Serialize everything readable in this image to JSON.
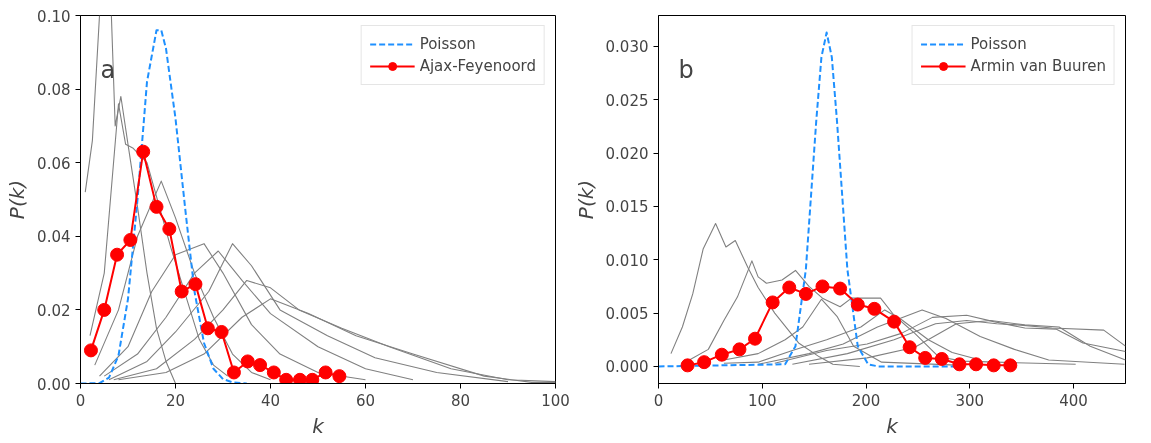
{
  "chart_data": [
    {
      "type": "line",
      "xlabel": "k",
      "ylabel": "P(k)",
      "annotations": [
        "a"
      ],
      "xlim": [
        0,
        100
      ],
      "ylim": [
        0,
        0.1
      ],
      "xticks": [
        0,
        20,
        40,
        60,
        80,
        100
      ],
      "yticks": [
        {
          "value": 0,
          "label": "0.00"
        },
        {
          "value": 0.02,
          "label": "0.02"
        },
        {
          "value": 0.04,
          "label": "0.04"
        },
        {
          "value": 0.06,
          "label": "0.06"
        },
        {
          "value": 0.08,
          "label": "0.08"
        },
        {
          "value": 0.1,
          "label": "0.10"
        }
      ],
      "grid": false,
      "legend": "top right",
      "series": [
        {
          "color": "#808080",
          "x": [
            1,
            2.5,
            4
          ],
          "values": [
            0.052,
            0.066,
            0.1
          ]
        },
        {
          "color": "#808080",
          "x": [
            6.5,
            7.3,
            8.5,
            10,
            12,
            14,
            16,
            18,
            20
          ],
          "values": [
            0.1,
            0.07,
            0.078,
            0.065,
            0.048,
            0.03,
            0.015,
            0.006,
            0.0
          ]
        },
        {
          "color": "#808080",
          "x": [
            2,
            5,
            8,
            9.5,
            11,
            14,
            19,
            25,
            28,
            31
          ],
          "values": [
            0.013,
            0.03,
            0.076,
            0.065,
            0.064,
            0.06,
            0.037,
            0.012,
            0.005,
            0.002
          ]
        },
        {
          "color": "#808080",
          "x": [
            3,
            8,
            12,
            17,
            20,
            24,
            28,
            32,
            36,
            40
          ],
          "values": [
            0.005,
            0.02,
            0.04,
            0.055,
            0.045,
            0.03,
            0.018,
            0.008,
            0.003,
            0.001
          ]
        },
        {
          "color": "#808080",
          "x": [
            4,
            10,
            15,
            20,
            26,
            30,
            36,
            42,
            50,
            60
          ],
          "values": [
            0.002,
            0.01,
            0.025,
            0.035,
            0.038,
            0.03,
            0.016,
            0.008,
            0.003,
            0.001
          ]
        },
        {
          "color": "#808080",
          "x": [
            5,
            12,
            18,
            24,
            29,
            34,
            40,
            50,
            60,
            70
          ],
          "values": [
            0.002,
            0.008,
            0.018,
            0.03,
            0.036,
            0.028,
            0.019,
            0.01,
            0.004,
            0.001
          ]
        },
        {
          "color": "#808080",
          "x": [
            6,
            14,
            20,
            27,
            32,
            36,
            42,
            52,
            62,
            75,
            90
          ],
          "values": [
            0.001,
            0.006,
            0.014,
            0.025,
            0.038,
            0.032,
            0.02,
            0.013,
            0.007,
            0.003,
            0.0005
          ]
        },
        {
          "color": "#808080",
          "x": [
            7,
            16,
            24,
            30,
            35,
            40,
            46,
            55,
            65,
            78,
            90,
            100
          ],
          "values": [
            0.001,
            0.004,
            0.012,
            0.02,
            0.028,
            0.026,
            0.02,
            0.015,
            0.01,
            0.004,
            0.001,
            0.0005
          ]
        },
        {
          "color": "#808080",
          "x": [
            8,
            18,
            26,
            34,
            40,
            48,
            58,
            70,
            85,
            95,
            100
          ],
          "values": [
            0.001,
            0.003,
            0.008,
            0.018,
            0.023,
            0.019,
            0.013,
            0.008,
            0.002,
            0.0003,
            0.0003
          ]
        },
        {
          "name": "Poisson",
          "color": "#1e90ff",
          "line_style": "dashed",
          "marker": "none",
          "x": [
            0,
            4,
            6,
            8,
            10,
            12,
            14,
            16,
            17,
            18,
            20,
            22,
            24,
            26,
            28,
            30,
            32,
            35
          ],
          "values": [
            0,
            0.0001,
            0.0016,
            0.0076,
            0.023,
            0.05,
            0.082,
            0.096,
            0.096,
            0.091,
            0.072,
            0.048,
            0.025,
            0.011,
            0.004,
            0.0012,
            0.0003,
            0
          ]
        },
        {
          "name": "Ajax-Feyenoord",
          "color": "#ff0000",
          "line_style": "solid",
          "marker": "circle",
          "x": [
            2.2,
            5,
            7.7,
            10.5,
            13.2,
            16,
            18.7,
            21.3,
            24.2,
            26.8,
            29.7,
            32.3,
            35.2,
            37.8,
            40.7,
            43.3,
            46.2,
            48.8,
            51.6,
            54.5
          ],
          "values": [
            0.009,
            0.02,
            0.035,
            0.039,
            0.063,
            0.048,
            0.042,
            0.025,
            0.027,
            0.015,
            0.014,
            0.003,
            0.006,
            0.005,
            0.003,
            0.001,
            0.001,
            0.001,
            0.003,
            0.002
          ]
        }
      ]
    },
    {
      "type": "line",
      "xlabel": "k",
      "ylabel": "P(k)",
      "annotations": [
        "b"
      ],
      "xlim": [
        0,
        450
      ],
      "ylim": [
        -0.0016,
        0.0329
      ],
      "xticks": [
        0,
        100,
        200,
        300,
        400
      ],
      "yticks": [
        {
          "value": 0,
          "label": "0.000"
        },
        {
          "value": 0.005,
          "label": "0.005"
        },
        {
          "value": 0.01,
          "label": "0.010"
        },
        {
          "value": 0.015,
          "label": "0.015"
        },
        {
          "value": 0.02,
          "label": "0.020"
        },
        {
          "value": 0.025,
          "label": "0.025"
        },
        {
          "value": 0.03,
          "label": "0.030"
        }
      ],
      "grid": false,
      "legend": "top right",
      "series": [
        {
          "color": "#808080",
          "x": [
            12,
            23,
            33,
            43,
            55,
            65,
            74,
            86,
            96,
            112,
            135,
            155,
            168,
            194
          ],
          "values": [
            0.0012,
            0.0037,
            0.0068,
            0.011,
            0.0134,
            0.0112,
            0.0118,
            0.0093,
            0.0074,
            0.005,
            0.0022,
            0.0009,
            0.0002,
            0.0
          ]
        },
        {
          "color": "#808080",
          "x": [
            28,
            48,
            63,
            76,
            90,
            96,
            104,
            119,
            132,
            145,
            158,
            175,
            186,
            201,
            214,
            227,
            247,
            270,
            293,
            326,
            402
          ],
          "values": [
            0.0005,
            0.0016,
            0.0043,
            0.0065,
            0.0099,
            0.0084,
            0.0078,
            0.0081,
            0.009,
            0.0075,
            0.0064,
            0.0056,
            0.0064,
            0.0064,
            0.0064,
            0.0048,
            0.0031,
            0.0009,
            0.0005,
            0.0004,
            0.0002
          ]
        },
        {
          "color": "#808080",
          "x": [
            63,
            96,
            122,
            139,
            157,
            172,
            188,
            215,
            293
          ],
          "values": [
            0.0006,
            0.0012,
            0.0025,
            0.0037,
            0.0063,
            0.0047,
            0.0019,
            0.0004,
            0.0001
          ]
        },
        {
          "color": "#808080",
          "x": [
            63,
            96,
            129,
            162,
            195,
            218,
            234,
            260,
            283,
            310
          ],
          "values": [
            0.0003,
            0.0004,
            0.0015,
            0.0025,
            0.0037,
            0.0053,
            0.0044,
            0.0025,
            0.0013,
            0.0006
          ]
        },
        {
          "color": "#808080",
          "x": [
            96,
            145,
            178,
            211,
            254,
            277,
            310,
            343,
            376,
            449
          ],
          "values": [
            0.0002,
            0.0012,
            0.0021,
            0.0037,
            0.0053,
            0.0045,
            0.0028,
            0.0016,
            0.0006,
            0.0002
          ]
        },
        {
          "color": "#808080",
          "x": [
            112,
            162,
            201,
            234,
            264,
            297,
            323,
            353,
            383,
            409,
            450
          ],
          "values": [
            0.0003,
            0.0015,
            0.0021,
            0.0031,
            0.0046,
            0.0048,
            0.0042,
            0.0036,
            0.0035,
            0.0022,
            0.0014
          ]
        },
        {
          "color": "#808080",
          "x": [
            129,
            182,
            227,
            267,
            297,
            326,
            346,
            379,
            429,
            450
          ],
          "values": [
            0.0002,
            0.0012,
            0.0025,
            0.004,
            0.0043,
            0.004,
            0.0039,
            0.0036,
            0.0034,
            0.0019
          ]
        },
        {
          "color": "#808080",
          "x": [
            145,
            201,
            247,
            287,
            320,
            353,
            386,
            416,
            450
          ],
          "values": [
            0.0002,
            0.0008,
            0.0018,
            0.004,
            0.0043,
            0.0039,
            0.0037,
            0.0019,
            0.0006
          ]
        },
        {
          "name": "Poisson",
          "color": "#1e90ff",
          "line_style": "dashed",
          "marker": "none",
          "x": [
            0,
            122,
            132,
            142,
            152,
            157,
            162,
            167,
            172,
            182,
            192,
            202,
            212,
            286
          ],
          "values": [
            0,
            0.0002,
            0.0019,
            0.0091,
            0.023,
            0.029,
            0.0313,
            0.029,
            0.023,
            0.0091,
            0.0019,
            0.0002,
            0,
            0
          ]
        },
        {
          "name": "Armin van Buuren",
          "color": "#ff0000",
          "line_style": "solid",
          "marker": "circle",
          "x": [
            28,
            44,
            61,
            78,
            93,
            110,
            126,
            142,
            158,
            175,
            192,
            208,
            227,
            242,
            257,
            273,
            290,
            306,
            323,
            339
          ],
          "values": [
            0.0001,
            0.0004,
            0.0011,
            0.0016,
            0.0026,
            0.006,
            0.0074,
            0.0068,
            0.0075,
            0.0073,
            0.0058,
            0.0054,
            0.0042,
            0.0018,
            0.0008,
            0.0007,
            0.0002,
            0.0002,
            0.0001,
            0.0001
          ]
        }
      ]
    }
  ]
}
